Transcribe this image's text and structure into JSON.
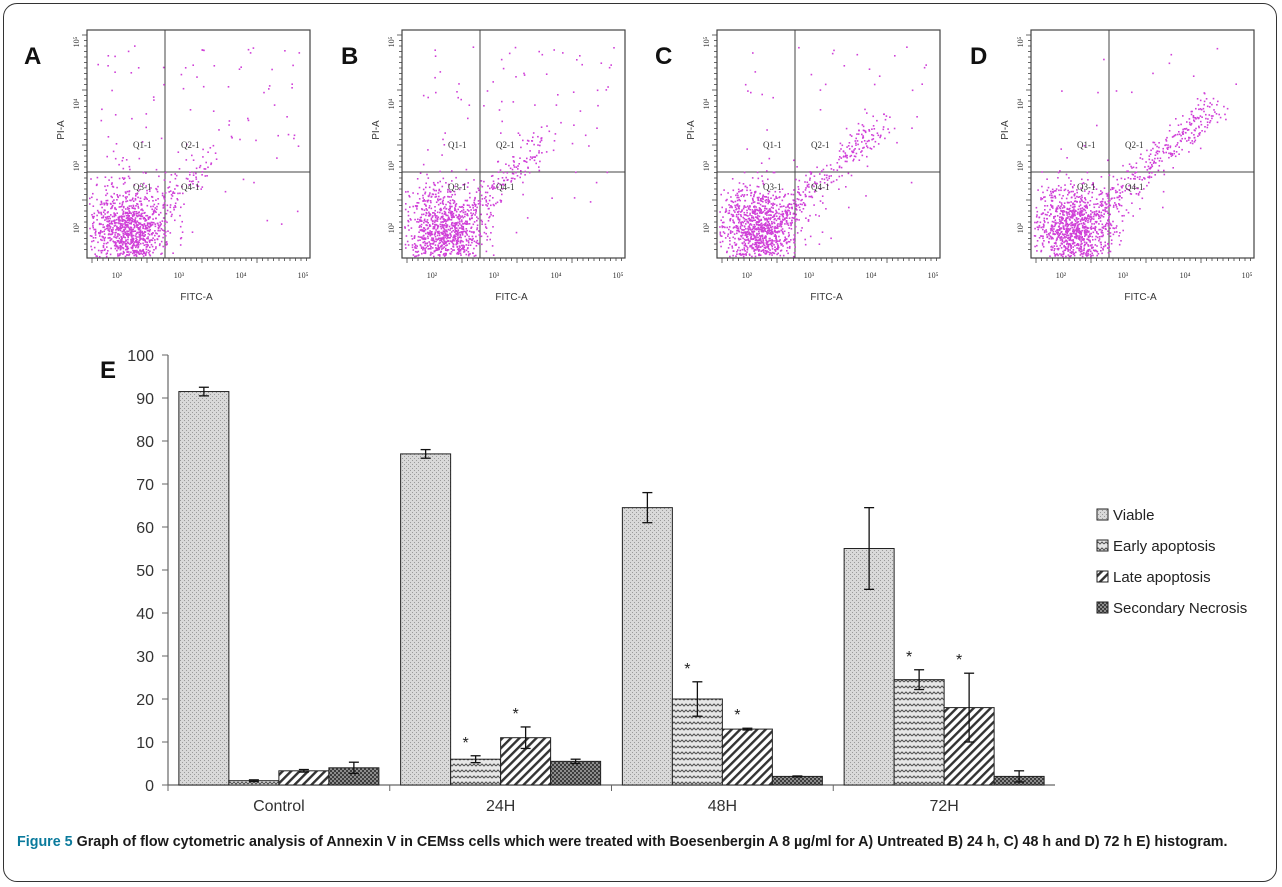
{
  "panel_labels": [
    "A",
    "B",
    "C",
    "D"
  ],
  "flow_axes": {
    "x_label": "FITC-A",
    "y_label": "PI-A",
    "x_ticks": [
      "10²",
      "10³",
      "10⁴",
      "10⁵"
    ],
    "y_ticks": [
      "10²",
      "10³",
      "10⁴",
      "10⁵"
    ]
  },
  "quadrant_labels": [
    "Q1-1",
    "Q2-1",
    "Q3-1",
    "Q4-1"
  ],
  "flow_colors": {
    "dots": "#d040d8",
    "axes": "#444444"
  },
  "histogram_label": "E",
  "caption": {
    "prefix": "Figure 5",
    "text": "Graph of flow cytometric analysis of Annexin V in CEMss cells which were treated with Boesenbergin A 8 µg/ml for  A) Untreated B) 24 h, C) 48 h and D) 72 h E) histogram."
  },
  "colors": {
    "caption_prefix": "#0a7a9c"
  },
  "chart_data": {
    "type": "bar",
    "categories": [
      "Control",
      "24H",
      "48H",
      "72H"
    ],
    "ylim": [
      0,
      100
    ],
    "yticks": [
      0,
      10,
      20,
      30,
      40,
      50,
      60,
      70,
      80,
      90,
      100
    ],
    "grid": false,
    "legend_position": "right",
    "series": [
      {
        "name": "Viable",
        "values": [
          91.5,
          77,
          64.5,
          55
        ],
        "errors": [
          1,
          1,
          3.5,
          9.5
        ],
        "significant": [
          false,
          false,
          false,
          false
        ]
      },
      {
        "name": "Early apoptosis",
        "values": [
          1,
          6,
          20,
          24.5
        ],
        "errors": [
          0.2,
          0.8,
          4,
          2.3
        ],
        "significant": [
          false,
          true,
          true,
          true
        ]
      },
      {
        "name": "Late apoptosis",
        "values": [
          3.3,
          11,
          13,
          18
        ],
        "errors": [
          0.3,
          2.5,
          0.2,
          8
        ],
        "significant": [
          false,
          true,
          true,
          true
        ]
      },
      {
        "name": "Secondary Necrosis",
        "values": [
          4,
          5.5,
          2,
          2
        ],
        "errors": [
          1.3,
          0.5,
          0.1,
          1.3
        ],
        "significant": [
          false,
          false,
          false,
          false
        ]
      }
    ],
    "annotation": "*"
  }
}
